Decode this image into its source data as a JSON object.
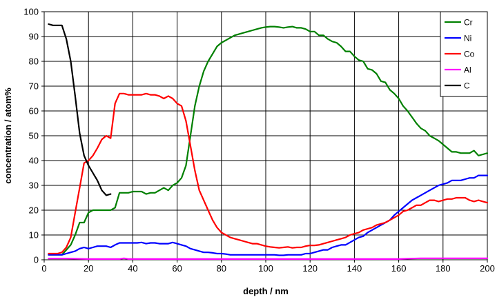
{
  "chart_data": {
    "type": "line",
    "xlabel": "depth / nm",
    "ylabel": "concentration / atom%",
    "xlim": [
      0,
      200
    ],
    "ylim": [
      0,
      100
    ],
    "x_ticks": [
      0,
      20,
      40,
      60,
      80,
      100,
      120,
      140,
      160,
      180,
      200
    ],
    "y_ticks": [
      0,
      10,
      20,
      30,
      40,
      50,
      60,
      70,
      80,
      90,
      100
    ],
    "grid": true,
    "legend_position": "top-right",
    "series": [
      {
        "name": "Cr",
        "color": "#008000",
        "points": [
          [
            2,
            2
          ],
          [
            4,
            2
          ],
          [
            6,
            2
          ],
          [
            8,
            2
          ],
          [
            10,
            4
          ],
          [
            12,
            6
          ],
          [
            14,
            10
          ],
          [
            16,
            15
          ],
          [
            18,
            15
          ],
          [
            20,
            19
          ],
          [
            22,
            20
          ],
          [
            24,
            20
          ],
          [
            26,
            20
          ],
          [
            28,
            20
          ],
          [
            30,
            20
          ],
          [
            32,
            21
          ],
          [
            34,
            27
          ],
          [
            36,
            27
          ],
          [
            38,
            27
          ],
          [
            40,
            27.5
          ],
          [
            42,
            27.5
          ],
          [
            44,
            27.5
          ],
          [
            46,
            26.5
          ],
          [
            48,
            27
          ],
          [
            50,
            27
          ],
          [
            52,
            28
          ],
          [
            54,
            29
          ],
          [
            56,
            28
          ],
          [
            58,
            30
          ],
          [
            60,
            31
          ],
          [
            62,
            33
          ],
          [
            64,
            38
          ],
          [
            66,
            50
          ],
          [
            68,
            62
          ],
          [
            70,
            70
          ],
          [
            72,
            76
          ],
          [
            74,
            80
          ],
          [
            76,
            83
          ],
          [
            78,
            86
          ],
          [
            80,
            87.5
          ],
          [
            82,
            88.5
          ],
          [
            84,
            89.5
          ],
          [
            86,
            90.5
          ],
          [
            88,
            91
          ],
          [
            90,
            91.5
          ],
          [
            92,
            92
          ],
          [
            94,
            92.5
          ],
          [
            96,
            93
          ],
          [
            98,
            93.5
          ],
          [
            100,
            93.8
          ],
          [
            102,
            94
          ],
          [
            104,
            94
          ],
          [
            106,
            93.8
          ],
          [
            108,
            93.5
          ],
          [
            110,
            93.8
          ],
          [
            112,
            94
          ],
          [
            114,
            93.5
          ],
          [
            116,
            93.5
          ],
          [
            118,
            93
          ],
          [
            120,
            92
          ],
          [
            122,
            92
          ],
          [
            124,
            90.5
          ],
          [
            126,
            90.5
          ],
          [
            128,
            89
          ],
          [
            130,
            88
          ],
          [
            132,
            87.5
          ],
          [
            134,
            86
          ],
          [
            136,
            84
          ],
          [
            138,
            84
          ],
          [
            140,
            82
          ],
          [
            142,
            80.5
          ],
          [
            144,
            80
          ],
          [
            146,
            77
          ],
          [
            148,
            76.5
          ],
          [
            150,
            75
          ],
          [
            152,
            72
          ],
          [
            154,
            71.5
          ],
          [
            156,
            68.5
          ],
          [
            158,
            67
          ],
          [
            160,
            65
          ],
          [
            162,
            62
          ],
          [
            164,
            60
          ],
          [
            166,
            57.5
          ],
          [
            168,
            55
          ],
          [
            170,
            53
          ],
          [
            172,
            52
          ],
          [
            174,
            50
          ],
          [
            176,
            49
          ],
          [
            178,
            48
          ],
          [
            180,
            46.5
          ],
          [
            182,
            45
          ],
          [
            184,
            43.5
          ],
          [
            186,
            43.5
          ],
          [
            188,
            43
          ],
          [
            190,
            43
          ],
          [
            192,
            43
          ],
          [
            194,
            44
          ],
          [
            196,
            42
          ],
          [
            198,
            42.5
          ],
          [
            200,
            43
          ]
        ]
      },
      {
        "name": "Ni",
        "color": "#0000ff",
        "points": [
          [
            2,
            2
          ],
          [
            4,
            2
          ],
          [
            6,
            2
          ],
          [
            8,
            2
          ],
          [
            10,
            2.5
          ],
          [
            12,
            3
          ],
          [
            14,
            3.5
          ],
          [
            16,
            4.5
          ],
          [
            18,
            5
          ],
          [
            20,
            4.5
          ],
          [
            22,
            5
          ],
          [
            24,
            5.5
          ],
          [
            26,
            5.5
          ],
          [
            28,
            5.5
          ],
          [
            30,
            5
          ],
          [
            32,
            6
          ],
          [
            34,
            6.8
          ],
          [
            36,
            6.8
          ],
          [
            38,
            6.8
          ],
          [
            40,
            6.8
          ],
          [
            42,
            6.8
          ],
          [
            44,
            7
          ],
          [
            46,
            6.5
          ],
          [
            48,
            6.8
          ],
          [
            50,
            6.8
          ],
          [
            52,
            6.5
          ],
          [
            54,
            6.5
          ],
          [
            56,
            6.5
          ],
          [
            58,
            7
          ],
          [
            60,
            6.5
          ],
          [
            62,
            6
          ],
          [
            64,
            5.5
          ],
          [
            66,
            4.5
          ],
          [
            68,
            4
          ],
          [
            70,
            3.5
          ],
          [
            72,
            3
          ],
          [
            74,
            3
          ],
          [
            76,
            2.8
          ],
          [
            78,
            2.5
          ],
          [
            80,
            2.5
          ],
          [
            82,
            2.3
          ],
          [
            84,
            2
          ],
          [
            86,
            2
          ],
          [
            88,
            2
          ],
          [
            90,
            2
          ],
          [
            92,
            2
          ],
          [
            94,
            2
          ],
          [
            96,
            2
          ],
          [
            98,
            2
          ],
          [
            100,
            2
          ],
          [
            102,
            2
          ],
          [
            104,
            2
          ],
          [
            106,
            1.8
          ],
          [
            108,
            1.8
          ],
          [
            110,
            2
          ],
          [
            112,
            2
          ],
          [
            114,
            2
          ],
          [
            116,
            2
          ],
          [
            118,
            2.5
          ],
          [
            120,
            2.5
          ],
          [
            122,
            3
          ],
          [
            124,
            3.5
          ],
          [
            126,
            4
          ],
          [
            128,
            4
          ],
          [
            130,
            5
          ],
          [
            132,
            5.5
          ],
          [
            134,
            6
          ],
          [
            136,
            6
          ],
          [
            138,
            7
          ],
          [
            140,
            8
          ],
          [
            142,
            9
          ],
          [
            144,
            9.5
          ],
          [
            146,
            11
          ],
          [
            148,
            12
          ],
          [
            150,
            13
          ],
          [
            152,
            14
          ],
          [
            154,
            15
          ],
          [
            156,
            16
          ],
          [
            158,
            18
          ],
          [
            160,
            19.5
          ],
          [
            162,
            21
          ],
          [
            164,
            22.5
          ],
          [
            166,
            24
          ],
          [
            168,
            25
          ],
          [
            170,
            26
          ],
          [
            172,
            27
          ],
          [
            174,
            28
          ],
          [
            176,
            29
          ],
          [
            178,
            30
          ],
          [
            180,
            30.5
          ],
          [
            182,
            31
          ],
          [
            184,
            32
          ],
          [
            186,
            32
          ],
          [
            188,
            32
          ],
          [
            190,
            32.5
          ],
          [
            192,
            33
          ],
          [
            194,
            33
          ],
          [
            196,
            34
          ],
          [
            198,
            34
          ],
          [
            200,
            34
          ]
        ]
      },
      {
        "name": "Co",
        "color": "#ff0000",
        "points": [
          [
            2,
            2.5
          ],
          [
            4,
            2.5
          ],
          [
            6,
            2.5
          ],
          [
            8,
            3
          ],
          [
            10,
            5
          ],
          [
            12,
            9
          ],
          [
            14,
            19
          ],
          [
            16,
            29
          ],
          [
            18,
            39
          ],
          [
            20,
            40
          ],
          [
            22,
            42
          ],
          [
            24,
            45
          ],
          [
            26,
            48.5
          ],
          [
            28,
            50
          ],
          [
            30,
            49
          ],
          [
            32,
            63
          ],
          [
            34,
            67
          ],
          [
            36,
            67
          ],
          [
            38,
            66.5
          ],
          [
            40,
            66.5
          ],
          [
            42,
            66.5
          ],
          [
            44,
            66.5
          ],
          [
            46,
            67
          ],
          [
            48,
            66.5
          ],
          [
            50,
            66.5
          ],
          [
            52,
            66
          ],
          [
            54,
            65
          ],
          [
            56,
            66
          ],
          [
            58,
            65
          ],
          [
            60,
            63
          ],
          [
            62,
            62
          ],
          [
            64,
            56
          ],
          [
            66,
            46
          ],
          [
            68,
            36
          ],
          [
            70,
            28
          ],
          [
            72,
            24
          ],
          [
            74,
            20
          ],
          [
            76,
            16
          ],
          [
            78,
            13
          ],
          [
            80,
            11
          ],
          [
            82,
            10
          ],
          [
            84,
            9
          ],
          [
            86,
            8.5
          ],
          [
            88,
            8
          ],
          [
            90,
            7.5
          ],
          [
            92,
            7
          ],
          [
            94,
            6.5
          ],
          [
            96,
            6.5
          ],
          [
            98,
            6
          ],
          [
            100,
            5.5
          ],
          [
            102,
            5.2
          ],
          [
            104,
            5
          ],
          [
            106,
            4.8
          ],
          [
            108,
            5
          ],
          [
            110,
            5.2
          ],
          [
            112,
            4.8
          ],
          [
            114,
            5
          ],
          [
            116,
            5
          ],
          [
            118,
            5.5
          ],
          [
            120,
            5.8
          ],
          [
            122,
            5.8
          ],
          [
            124,
            6
          ],
          [
            126,
            6.5
          ],
          [
            128,
            7
          ],
          [
            130,
            7.5
          ],
          [
            132,
            8
          ],
          [
            134,
            8.5
          ],
          [
            136,
            9
          ],
          [
            138,
            10
          ],
          [
            140,
            10.5
          ],
          [
            142,
            11
          ],
          [
            144,
            12
          ],
          [
            146,
            12.5
          ],
          [
            148,
            13
          ],
          [
            150,
            14
          ],
          [
            152,
            14.5
          ],
          [
            154,
            15
          ],
          [
            156,
            16
          ],
          [
            158,
            17
          ],
          [
            160,
            18
          ],
          [
            162,
            19.5
          ],
          [
            164,
            20
          ],
          [
            166,
            21
          ],
          [
            168,
            22
          ],
          [
            170,
            22
          ],
          [
            172,
            23
          ],
          [
            174,
            24
          ],
          [
            176,
            24
          ],
          [
            178,
            23.5
          ],
          [
            180,
            24
          ],
          [
            182,
            24.5
          ],
          [
            184,
            24.5
          ],
          [
            186,
            25
          ],
          [
            188,
            25
          ],
          [
            190,
            25
          ],
          [
            192,
            24
          ],
          [
            194,
            23.5
          ],
          [
            196,
            24
          ],
          [
            198,
            23.5
          ],
          [
            200,
            23
          ]
        ]
      },
      {
        "name": "Al",
        "color": "#ff00ff",
        "points": [
          [
            2,
            0.5
          ],
          [
            10,
            0.5
          ],
          [
            20,
            0.3
          ],
          [
            30,
            0.3
          ],
          [
            34,
            0.3
          ],
          [
            36,
            0.6
          ],
          [
            38,
            0.3
          ],
          [
            50,
            0.3
          ],
          [
            60,
            0.3
          ],
          [
            80,
            0.3
          ],
          [
            100,
            0.3
          ],
          [
            120,
            0.3
          ],
          [
            140,
            0.3
          ],
          [
            160,
            0.3
          ],
          [
            166,
            0.5
          ],
          [
            170,
            0.6
          ],
          [
            180,
            0.6
          ],
          [
            190,
            0.6
          ],
          [
            200,
            0.6
          ]
        ]
      },
      {
        "name": "C",
        "color": "#000000",
        "points": [
          [
            2,
            95
          ],
          [
            4,
            94.5
          ],
          [
            6,
            94.5
          ],
          [
            8,
            94.5
          ],
          [
            10,
            89
          ],
          [
            12,
            80
          ],
          [
            14,
            66
          ],
          [
            16,
            51
          ],
          [
            18,
            42
          ],
          [
            20,
            38
          ],
          [
            22,
            35
          ],
          [
            24,
            32
          ],
          [
            26,
            28
          ],
          [
            28,
            26
          ],
          [
            30,
            26.5
          ]
        ]
      }
    ]
  }
}
